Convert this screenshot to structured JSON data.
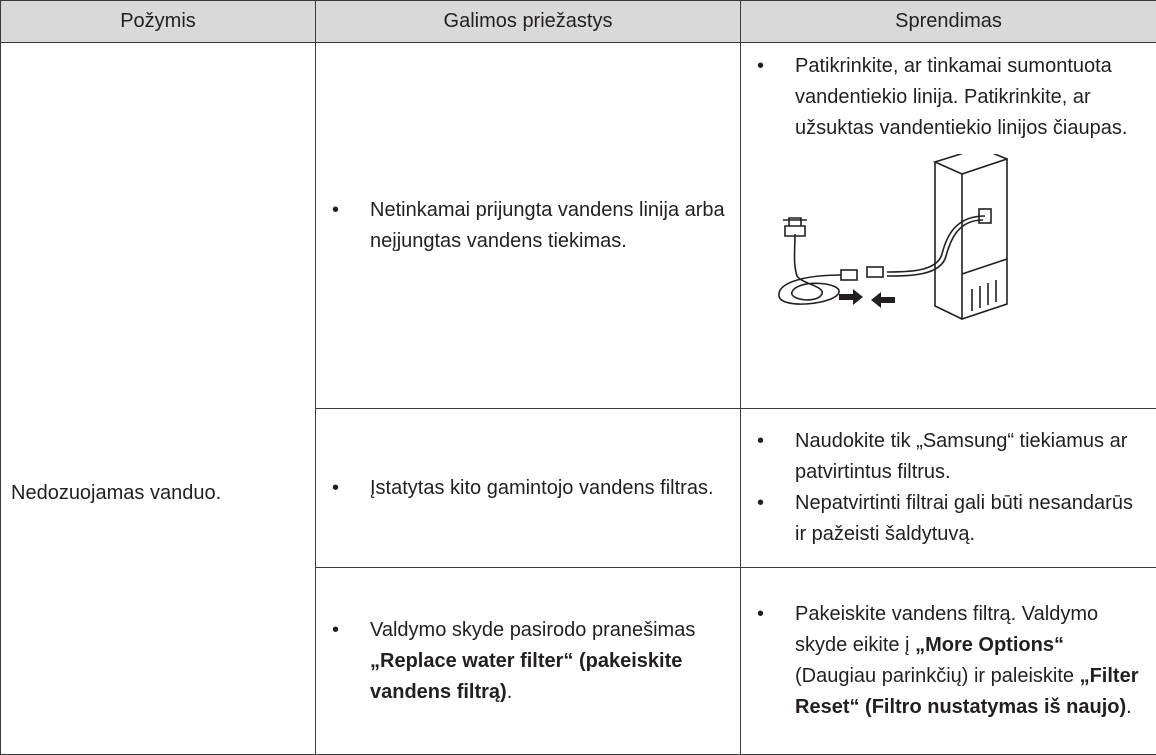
{
  "table": {
    "headers": [
      "Požymis",
      "Galimos priežastys",
      "Sprendimas"
    ],
    "symptom": "Nedozuojamas vanduo.",
    "rows": [
      {
        "causes": [
          [
            "Netinkamai prijungta vandens linija arba neįjungtas vandens tiekimas."
          ]
        ],
        "solutions": [
          [
            "Patikrinkite, ar tinkamai sumontuota vandentiekio linija. Patikrinkite, ar užsuktas vandentiekio linijos čiaupas."
          ]
        ]
      },
      {
        "causes": [
          [
            "Įstatytas kito gamintojo vandens filtras."
          ]
        ],
        "solutions": [
          [
            "Naudokite tik „Samsung“ tiekiamus ar patvirtintus filtrus."
          ],
          [
            "Nepatvirtinti filtrai gali būti nesandarūs ir pažeisti šaldytuvą."
          ]
        ]
      },
      {
        "causes": [
          [
            "Valdymo skyde pasirodo pranešimas ",
            {
              "text": "„Replace water filter“ (pakeiskite vandens filtrą)",
              "bold": true
            },
            "."
          ]
        ],
        "solutions": [
          [
            "Pakeiskite vandens filtrą. Valdymo skyde eikite į ",
            {
              "text": "„More Options“",
              "bold": true
            },
            " (Daugiau parinkčių) ir paleiskite ",
            {
              "text": "„Filter Reset“ (Filtro nustatymas iš naujo)",
              "bold": true
            },
            "."
          ]
        ]
      }
    ]
  }
}
